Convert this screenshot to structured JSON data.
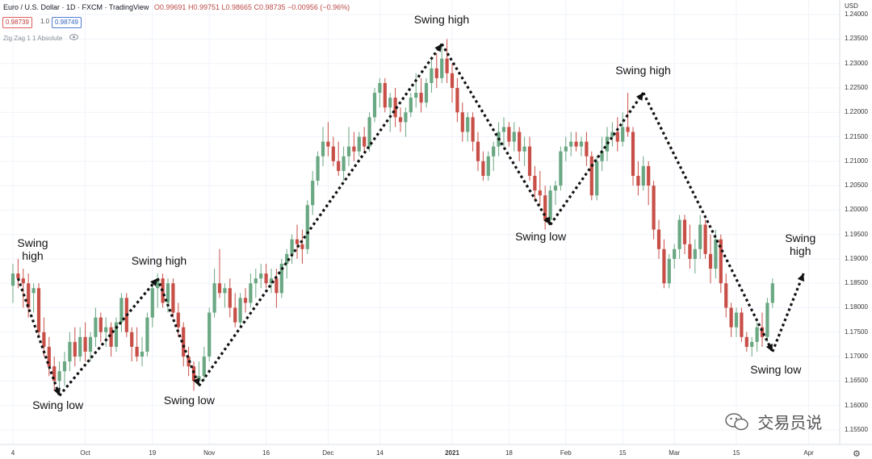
{
  "header": {
    "title": "Euro / U.S. Dollar · 1D · FXCM · TradingView",
    "ohlc": "O0.99691 H0.99751 L0.98665 C0.98735 −0.00956 (−0.96%)"
  },
  "price_boxes": {
    "bid": "0.98739",
    "spread": "1.0",
    "ask": "0.98749"
  },
  "indicator": "Zig Zag 1 1 Absolute",
  "watermark": "交易员说",
  "chart_data": {
    "type": "candlestick",
    "title": "Euro / U.S. Dollar · 1D · FXCM · TradingView",
    "currency": "USD",
    "ylim": [
      1.152,
      1.243
    ],
    "y_ticks": [
      "1.24000",
      "1.23500",
      "1.23000",
      "1.22500",
      "1.22000",
      "1.21500",
      "1.21000",
      "1.20500",
      "1.20000",
      "1.19500",
      "1.19000",
      "1.18500",
      "1.18000",
      "1.17500",
      "1.17000",
      "1.16500",
      "1.16000",
      "1.15500"
    ],
    "x_ticks": [
      {
        "label": "4",
        "i": 0
      },
      {
        "label": "Oct",
        "i": 14
      },
      {
        "label": "19",
        "i": 27
      },
      {
        "label": "Nov",
        "i": 38
      },
      {
        "label": "16",
        "i": 49
      },
      {
        "label": "Dec",
        "i": 61
      },
      {
        "label": "14",
        "i": 71
      },
      {
        "label": "2021",
        "i": 85,
        "bold": true
      },
      {
        "label": "18",
        "i": 96
      },
      {
        "label": "Feb",
        "i": 107
      },
      {
        "label": "15",
        "i": 118
      },
      {
        "label": "Mar",
        "i": 128
      },
      {
        "label": "15",
        "i": 140
      },
      {
        "label": "Apr",
        "i": 154
      }
    ],
    "candles": [
      {
        "o": 1.1845,
        "h": 1.189,
        "l": 1.181,
        "c": 1.187
      },
      {
        "o": 1.187,
        "h": 1.19,
        "l": 1.184,
        "c": 1.186
      },
      {
        "o": 1.186,
        "h": 1.188,
        "l": 1.18,
        "c": 1.185
      },
      {
        "o": 1.185,
        "h": 1.187,
        "l": 1.178,
        "c": 1.18
      },
      {
        "o": 1.183,
        "h": 1.185,
        "l": 1.179,
        "c": 1.184
      },
      {
        "o": 1.184,
        "h": 1.185,
        "l": 1.174,
        "c": 1.175
      },
      {
        "o": 1.175,
        "h": 1.178,
        "l": 1.17,
        "c": 1.172
      },
      {
        "o": 1.172,
        "h": 1.174,
        "l": 1.166,
        "c": 1.168
      },
      {
        "o": 1.168,
        "h": 1.17,
        "l": 1.163,
        "c": 1.165
      },
      {
        "o": 1.165,
        "h": 1.169,
        "l": 1.162,
        "c": 1.167
      },
      {
        "o": 1.167,
        "h": 1.171,
        "l": 1.164,
        "c": 1.169
      },
      {
        "o": 1.169,
        "h": 1.175,
        "l": 1.167,
        "c": 1.173
      },
      {
        "o": 1.173,
        "h": 1.176,
        "l": 1.168,
        "c": 1.17
      },
      {
        "o": 1.17,
        "h": 1.176,
        "l": 1.169,
        "c": 1.174
      },
      {
        "o": 1.174,
        "h": 1.177,
        "l": 1.169,
        "c": 1.171
      },
      {
        "o": 1.171,
        "h": 1.175,
        "l": 1.169,
        "c": 1.174
      },
      {
        "o": 1.174,
        "h": 1.18,
        "l": 1.172,
        "c": 1.178
      },
      {
        "o": 1.178,
        "h": 1.179,
        "l": 1.173,
        "c": 1.175
      },
      {
        "o": 1.175,
        "h": 1.178,
        "l": 1.172,
        "c": 1.176
      },
      {
        "o": 1.176,
        "h": 1.177,
        "l": 1.17,
        "c": 1.172
      },
      {
        "o": 1.172,
        "h": 1.178,
        "l": 1.171,
        "c": 1.177
      },
      {
        "o": 1.177,
        "h": 1.183,
        "l": 1.175,
        "c": 1.182
      },
      {
        "o": 1.182,
        "h": 1.183,
        "l": 1.174,
        "c": 1.175
      },
      {
        "o": 1.175,
        "h": 1.176,
        "l": 1.169,
        "c": 1.172
      },
      {
        "o": 1.172,
        "h": 1.176,
        "l": 1.169,
        "c": 1.17
      },
      {
        "o": 1.17,
        "h": 1.174,
        "l": 1.168,
        "c": 1.171
      },
      {
        "o": 1.171,
        "h": 1.179,
        "l": 1.17,
        "c": 1.178
      },
      {
        "o": 1.178,
        "h": 1.185,
        "l": 1.176,
        "c": 1.184
      },
      {
        "o": 1.184,
        "h": 1.187,
        "l": 1.18,
        "c": 1.186
      },
      {
        "o": 1.186,
        "h": 1.187,
        "l": 1.18,
        "c": 1.181
      },
      {
        "o": 1.181,
        "h": 1.186,
        "l": 1.179,
        "c": 1.185
      },
      {
        "o": 1.185,
        "h": 1.186,
        "l": 1.178,
        "c": 1.179
      },
      {
        "o": 1.179,
        "h": 1.181,
        "l": 1.174,
        "c": 1.176
      },
      {
        "o": 1.176,
        "h": 1.177,
        "l": 1.168,
        "c": 1.17
      },
      {
        "o": 1.17,
        "h": 1.172,
        "l": 1.166,
        "c": 1.168
      },
      {
        "o": 1.168,
        "h": 1.169,
        "l": 1.163,
        "c": 1.165
      },
      {
        "o": 1.165,
        "h": 1.169,
        "l": 1.164,
        "c": 1.166
      },
      {
        "o": 1.166,
        "h": 1.172,
        "l": 1.165,
        "c": 1.17
      },
      {
        "o": 1.17,
        "h": 1.18,
        "l": 1.169,
        "c": 1.179
      },
      {
        "o": 1.179,
        "h": 1.188,
        "l": 1.178,
        "c": 1.185
      },
      {
        "o": 1.185,
        "h": 1.192,
        "l": 1.182,
        "c": 1.183
      },
      {
        "o": 1.183,
        "h": 1.185,
        "l": 1.18,
        "c": 1.184
      },
      {
        "o": 1.184,
        "h": 1.186,
        "l": 1.178,
        "c": 1.18
      },
      {
        "o": 1.18,
        "h": 1.183,
        "l": 1.176,
        "c": 1.177
      },
      {
        "o": 1.177,
        "h": 1.183,
        "l": 1.176,
        "c": 1.182
      },
      {
        "o": 1.182,
        "h": 1.184,
        "l": 1.179,
        "c": 1.181
      },
      {
        "o": 1.181,
        "h": 1.187,
        "l": 1.18,
        "c": 1.185
      },
      {
        "o": 1.185,
        "h": 1.188,
        "l": 1.182,
        "c": 1.186
      },
      {
        "o": 1.186,
        "h": 1.189,
        "l": 1.184,
        "c": 1.187
      },
      {
        "o": 1.187,
        "h": 1.189,
        "l": 1.184,
        "c": 1.185
      },
      {
        "o": 1.185,
        "h": 1.188,
        "l": 1.183,
        "c": 1.186
      },
      {
        "o": 1.186,
        "h": 1.188,
        "l": 1.18,
        "c": 1.183
      },
      {
        "o": 1.183,
        "h": 1.19,
        "l": 1.182,
        "c": 1.189
      },
      {
        "o": 1.189,
        "h": 1.192,
        "l": 1.186,
        "c": 1.191
      },
      {
        "o": 1.191,
        "h": 1.195,
        "l": 1.189,
        "c": 1.194
      },
      {
        "o": 1.194,
        "h": 1.197,
        "l": 1.19,
        "c": 1.193
      },
      {
        "o": 1.193,
        "h": 1.196,
        "l": 1.189,
        "c": 1.192
      },
      {
        "o": 1.192,
        "h": 1.202,
        "l": 1.191,
        "c": 1.201
      },
      {
        "o": 1.201,
        "h": 1.208,
        "l": 1.199,
        "c": 1.206
      },
      {
        "o": 1.206,
        "h": 1.212,
        "l": 1.205,
        "c": 1.211
      },
      {
        "o": 1.211,
        "h": 1.217,
        "l": 1.209,
        "c": 1.214
      },
      {
        "o": 1.214,
        "h": 1.218,
        "l": 1.211,
        "c": 1.213
      },
      {
        "o": 1.213,
        "h": 1.215,
        "l": 1.209,
        "c": 1.21
      },
      {
        "o": 1.21,
        "h": 1.214,
        "l": 1.207,
        "c": 1.208
      },
      {
        "o": 1.208,
        "h": 1.213,
        "l": 1.206,
        "c": 1.211
      },
      {
        "o": 1.211,
        "h": 1.217,
        "l": 1.209,
        "c": 1.213
      },
      {
        "o": 1.213,
        "h": 1.216,
        "l": 1.21,
        "c": 1.212
      },
      {
        "o": 1.212,
        "h": 1.216,
        "l": 1.211,
        "c": 1.215
      },
      {
        "o": 1.215,
        "h": 1.217,
        "l": 1.212,
        "c": 1.213
      },
      {
        "o": 1.213,
        "h": 1.22,
        "l": 1.212,
        "c": 1.219
      },
      {
        "o": 1.219,
        "h": 1.225,
        "l": 1.218,
        "c": 1.224
      },
      {
        "o": 1.224,
        "h": 1.227,
        "l": 1.221,
        "c": 1.226
      },
      {
        "o": 1.226,
        "h": 1.227,
        "l": 1.22,
        "c": 1.221
      },
      {
        "o": 1.221,
        "h": 1.224,
        "l": 1.216,
        "c": 1.223
      },
      {
        "o": 1.223,
        "h": 1.225,
        "l": 1.217,
        "c": 1.219
      },
      {
        "o": 1.219,
        "h": 1.221,
        "l": 1.216,
        "c": 1.218
      },
      {
        "o": 1.218,
        "h": 1.221,
        "l": 1.215,
        "c": 1.22
      },
      {
        "o": 1.22,
        "h": 1.224,
        "l": 1.219,
        "c": 1.223
      },
      {
        "o": 1.223,
        "h": 1.228,
        "l": 1.221,
        "c": 1.224
      },
      {
        "o": 1.224,
        "h": 1.227,
        "l": 1.22,
        "c": 1.222
      },
      {
        "o": 1.222,
        "h": 1.227,
        "l": 1.221,
        "c": 1.226
      },
      {
        "o": 1.226,
        "h": 1.231,
        "l": 1.224,
        "c": 1.229
      },
      {
        "o": 1.229,
        "h": 1.232,
        "l": 1.225,
        "c": 1.227
      },
      {
        "o": 1.227,
        "h": 1.234,
        "l": 1.226,
        "c": 1.231
      },
      {
        "o": 1.231,
        "h": 1.235,
        "l": 1.226,
        "c": 1.228
      },
      {
        "o": 1.228,
        "h": 1.23,
        "l": 1.222,
        "c": 1.225
      },
      {
        "o": 1.225,
        "h": 1.227,
        "l": 1.218,
        "c": 1.22
      },
      {
        "o": 1.22,
        "h": 1.222,
        "l": 1.214,
        "c": 1.216
      },
      {
        "o": 1.216,
        "h": 1.22,
        "l": 1.214,
        "c": 1.219
      },
      {
        "o": 1.219,
        "h": 1.22,
        "l": 1.212,
        "c": 1.214
      },
      {
        "o": 1.214,
        "h": 1.216,
        "l": 1.208,
        "c": 1.21
      },
      {
        "o": 1.21,
        "h": 1.212,
        "l": 1.206,
        "c": 1.207
      },
      {
        "o": 1.207,
        "h": 1.212,
        "l": 1.206,
        "c": 1.211
      },
      {
        "o": 1.211,
        "h": 1.214,
        "l": 1.208,
        "c": 1.213
      },
      {
        "o": 1.213,
        "h": 1.218,
        "l": 1.211,
        "c": 1.216
      },
      {
        "o": 1.216,
        "h": 1.219,
        "l": 1.213,
        "c": 1.217
      },
      {
        "o": 1.217,
        "h": 1.218,
        "l": 1.213,
        "c": 1.214
      },
      {
        "o": 1.214,
        "h": 1.218,
        "l": 1.212,
        "c": 1.216
      },
      {
        "o": 1.216,
        "h": 1.217,
        "l": 1.21,
        "c": 1.212
      },
      {
        "o": 1.212,
        "h": 1.215,
        "l": 1.209,
        "c": 1.213
      },
      {
        "o": 1.213,
        "h": 1.215,
        "l": 1.206,
        "c": 1.207
      },
      {
        "o": 1.207,
        "h": 1.209,
        "l": 1.202,
        "c": 1.204
      },
      {
        "o": 1.204,
        "h": 1.208,
        "l": 1.201,
        "c": 1.203
      },
      {
        "o": 1.203,
        "h": 1.205,
        "l": 1.196,
        "c": 1.198
      },
      {
        "o": 1.198,
        "h": 1.205,
        "l": 1.197,
        "c": 1.204
      },
      {
        "o": 1.204,
        "h": 1.206,
        "l": 1.201,
        "c": 1.205
      },
      {
        "o": 1.205,
        "h": 1.213,
        "l": 1.204,
        "c": 1.212
      },
      {
        "o": 1.212,
        "h": 1.215,
        "l": 1.21,
        "c": 1.213
      },
      {
        "o": 1.213,
        "h": 1.216,
        "l": 1.211,
        "c": 1.214
      },
      {
        "o": 1.214,
        "h": 1.216,
        "l": 1.212,
        "c": 1.213
      },
      {
        "o": 1.213,
        "h": 1.215,
        "l": 1.211,
        "c": 1.214
      },
      {
        "o": 1.214,
        "h": 1.216,
        "l": 1.209,
        "c": 1.211
      },
      {
        "o": 1.211,
        "h": 1.212,
        "l": 1.202,
        "c": 1.203
      },
      {
        "o": 1.203,
        "h": 1.211,
        "l": 1.202,
        "c": 1.21
      },
      {
        "o": 1.21,
        "h": 1.215,
        "l": 1.208,
        "c": 1.212
      },
      {
        "o": 1.212,
        "h": 1.217,
        "l": 1.21,
        "c": 1.215
      },
      {
        "o": 1.215,
        "h": 1.218,
        "l": 1.213,
        "c": 1.216
      },
      {
        "o": 1.216,
        "h": 1.219,
        "l": 1.212,
        "c": 1.214
      },
      {
        "o": 1.214,
        "h": 1.22,
        "l": 1.213,
        "c": 1.217
      },
      {
        "o": 1.217,
        "h": 1.224,
        "l": 1.215,
        "c": 1.216
      },
      {
        "o": 1.216,
        "h": 1.217,
        "l": 1.205,
        "c": 1.207
      },
      {
        "o": 1.207,
        "h": 1.21,
        "l": 1.203,
        "c": 1.205
      },
      {
        "o": 1.205,
        "h": 1.211,
        "l": 1.204,
        "c": 1.209
      },
      {
        "o": 1.209,
        "h": 1.21,
        "l": 1.201,
        "c": 1.205
      },
      {
        "o": 1.205,
        "h": 1.206,
        "l": 1.194,
        "c": 1.196
      },
      {
        "o": 1.196,
        "h": 1.198,
        "l": 1.19,
        "c": 1.192
      },
      {
        "o": 1.192,
        "h": 1.194,
        "l": 1.184,
        "c": 1.185
      },
      {
        "o": 1.185,
        "h": 1.191,
        "l": 1.184,
        "c": 1.19
      },
      {
        "o": 1.19,
        "h": 1.193,
        "l": 1.188,
        "c": 1.192
      },
      {
        "o": 1.192,
        "h": 1.199,
        "l": 1.19,
        "c": 1.198
      },
      {
        "o": 1.198,
        "h": 1.199,
        "l": 1.191,
        "c": 1.193
      },
      {
        "o": 1.193,
        "h": 1.197,
        "l": 1.188,
        "c": 1.19
      },
      {
        "o": 1.19,
        "h": 1.194,
        "l": 1.187,
        "c": 1.192
      },
      {
        "o": 1.192,
        "h": 1.199,
        "l": 1.19,
        "c": 1.197
      },
      {
        "o": 1.197,
        "h": 1.198,
        "l": 1.19,
        "c": 1.191
      },
      {
        "o": 1.191,
        "h": 1.195,
        "l": 1.185,
        "c": 1.188
      },
      {
        "o": 1.188,
        "h": 1.196,
        "l": 1.186,
        "c": 1.194
      },
      {
        "o": 1.194,
        "h": 1.195,
        "l": 1.183,
        "c": 1.185
      },
      {
        "o": 1.185,
        "h": 1.187,
        "l": 1.178,
        "c": 1.18
      },
      {
        "o": 1.18,
        "h": 1.181,
        "l": 1.174,
        "c": 1.176
      },
      {
        "o": 1.176,
        "h": 1.18,
        "l": 1.174,
        "c": 1.179
      },
      {
        "o": 1.179,
        "h": 1.18,
        "l": 1.173,
        "c": 1.174
      },
      {
        "o": 1.174,
        "h": 1.175,
        "l": 1.171,
        "c": 1.172
      },
      {
        "o": 1.172,
        "h": 1.174,
        "l": 1.17,
        "c": 1.173
      },
      {
        "o": 1.173,
        "h": 1.177,
        "l": 1.171,
        "c": 1.176
      },
      {
        "o": 1.176,
        "h": 1.179,
        "l": 1.172,
        "c": 1.174
      },
      {
        "o": 1.174,
        "h": 1.182,
        "l": 1.173,
        "c": 1.181
      },
      {
        "o": 1.181,
        "h": 1.186,
        "l": 1.18,
        "c": 1.185
      }
    ],
    "zigzag": [
      {
        "i": 1,
        "price": 1.186
      },
      {
        "i": 9,
        "price": 1.162
      },
      {
        "i": 28,
        "price": 1.186
      },
      {
        "i": 36,
        "price": 1.164
      },
      {
        "i": 83,
        "price": 1.234
      },
      {
        "i": 104,
        "price": 1.197
      },
      {
        "i": 122,
        "price": 1.224
      },
      {
        "i": 147,
        "price": 1.171
      },
      {
        "i": 153,
        "price": 1.187
      }
    ],
    "annotations": [
      {
        "text": "Swing\nhigh",
        "point": 0
      },
      {
        "text": "Swing low",
        "point": 1
      },
      {
        "text": "Swing high",
        "point": 2
      },
      {
        "text": "Swing low",
        "point": 3
      },
      {
        "text": "Swing high",
        "point": 4
      },
      {
        "text": "Swing low",
        "point": 5
      },
      {
        "text": "Swing high",
        "point": 6
      },
      {
        "text": "Swing low",
        "point": 7
      },
      {
        "text": "Swing\nhigh",
        "point": 8
      }
    ],
    "colors": {
      "up": "#6aa783",
      "down": "#c84f47",
      "line": "#111111"
    }
  }
}
